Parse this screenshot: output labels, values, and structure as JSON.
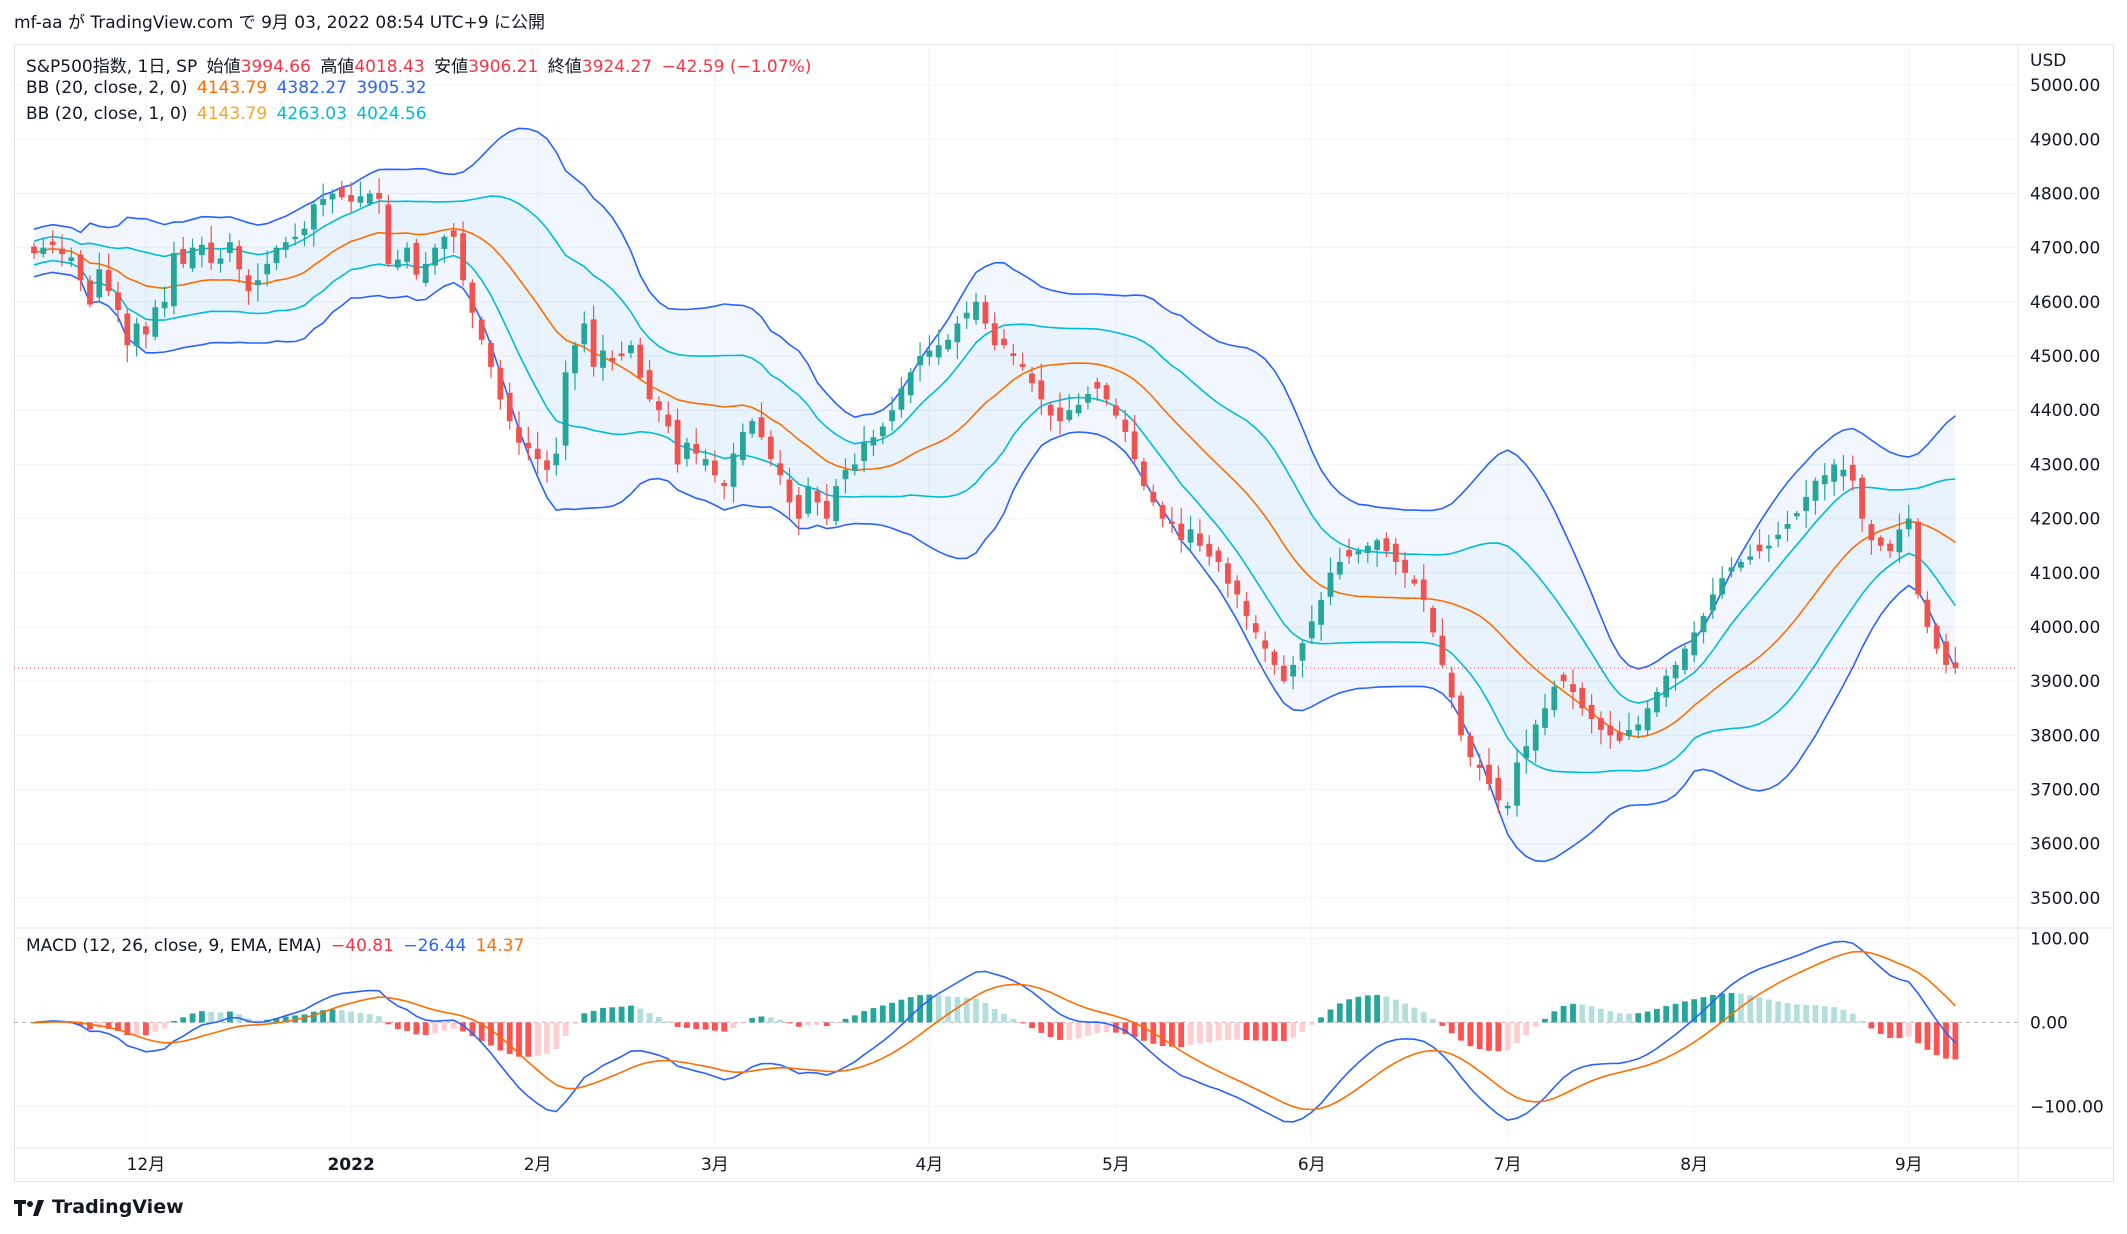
{
  "caption": "mf-aa が TradingView.com で 9月 03, 2022 08:54 UTC+9 に公開",
  "legend": {
    "symbol": "S&P500指数, 1日, SP",
    "open_label": "始値",
    "open": "3994.66",
    "high_label": "高値",
    "high": "4018.43",
    "low_label": "安値",
    "low": "3906.21",
    "close_label": "終値",
    "close": "3924.27",
    "change": "−42.59 (−1.07%)",
    "bb2_label": "BB (20, close, 2, 0)",
    "bb2_basis": "4143.79",
    "bb2_upper": "4382.27",
    "bb2_lower": "3905.32",
    "bb1_label": "BB (20, close, 1, 0)",
    "bb1_basis": "4143.79",
    "bb1_upper": "4263.03",
    "bb1_lower": "4024.56",
    "macd_label": "MACD (12, 26, close, 9, EMA, EMA)",
    "macd_hist": "−40.81",
    "macd_line": "−26.44",
    "macd_signal": "14.37"
  },
  "footer": {
    "brand": "TradingView"
  },
  "colors": {
    "up": "#26a69a",
    "down": "#ef5350",
    "bb2_band": "#2962ff",
    "bb1_band": "#00bcd4",
    "basis": "#ff6d00",
    "macd_line": "#2962ff",
    "signal_line": "#ff6d00",
    "hist_up_strong": "#26a69a",
    "hist_up_weak": "#b2dfdb",
    "hist_down_strong": "#ff5252",
    "hist_down_weak": "#ffcdd2"
  },
  "chart_data": [
    {
      "type": "candlestick",
      "currency": "USD",
      "ylim": [
        3450,
        5050
      ],
      "yticks": [
        3500,
        3600,
        3700,
        3800,
        3900,
        4000,
        4100,
        4200,
        4300,
        4400,
        4500,
        4600,
        4700,
        4800,
        4900,
        5000
      ],
      "ytick_labels": [
        "3500.00",
        "3600.00",
        "3700.00",
        "3800.00",
        "3900.00",
        "4000.00",
        "4100.00",
        "4200.00",
        "4300.00",
        "4400.00",
        "4500.00",
        "4600.00",
        "4700.00",
        "4800.00",
        "4900.00",
        "5000.00"
      ],
      "x_labels": [
        {
          "label": "12月",
          "index": 12
        },
        {
          "label": "2022",
          "index": 34
        },
        {
          "label": "2月",
          "index": 54
        },
        {
          "label": "3月",
          "index": 73
        },
        {
          "label": "4月",
          "index": 96
        },
        {
          "label": "5月",
          "index": 116
        },
        {
          "label": "6月",
          "index": 137
        },
        {
          "label": "7月",
          "index": 158
        },
        {
          "label": "8月",
          "index": 178
        },
        {
          "label": "9月",
          "index": 201
        }
      ],
      "last_close": 3924.27,
      "closes": [
        4690,
        4700,
        4705,
        4688,
        4682,
        4640,
        4595,
        4660,
        4620,
        4585,
        4520,
        4560,
        4540,
        4590,
        4600,
        4690,
        4670,
        4700,
        4705,
        4672,
        4680,
        4710,
        4660,
        4620,
        4640,
        4670,
        4700,
        4710,
        4720,
        4735,
        4780,
        4790,
        4800,
        4793,
        4785,
        4795,
        4800,
        4790,
        4670,
        4678,
        4700,
        4650,
        4670,
        4700,
        4720,
        4720,
        4640,
        4580,
        4530,
        4480,
        4420,
        4380,
        4340,
        4330,
        4310,
        4290,
        4320,
        4470,
        4520,
        4560,
        4480,
        4510,
        4490,
        4500,
        4520,
        4460,
        4420,
        4400,
        4370,
        4300,
        4340,
        4320,
        4310,
        4280,
        4260,
        4320,
        4360,
        4380,
        4350,
        4310,
        4280,
        4230,
        4200,
        4260,
        4230,
        4200,
        4260,
        4290,
        4300,
        4340,
        4350,
        4370,
        4400,
        4440,
        4470,
        4500,
        4510,
        4520,
        4530,
        4560,
        4580,
        4600,
        4560,
        4520,
        4520,
        4500,
        4480,
        4450,
        4420,
        4390,
        4380,
        4400,
        4410,
        4430,
        4440,
        4420,
        4390,
        4360,
        4310,
        4260,
        4230,
        4200,
        4190,
        4160,
        4180,
        4150,
        4130,
        4120,
        4080,
        4060,
        4020,
        3990,
        3960,
        3930,
        3900,
        3930,
        3970,
        4010,
        4050,
        4100,
        4120,
        4130,
        4140,
        4150,
        4160,
        4140,
        4120,
        4100,
        4080,
        4050,
        3990,
        3930,
        3870,
        3800,
        3760,
        3740,
        3710,
        3680,
        3670,
        3750,
        3780,
        3820,
        3850,
        3890,
        3900,
        3880,
        3850,
        3830,
        3810,
        3800,
        3790,
        3810,
        3820,
        3850,
        3880,
        3910,
        3930,
        3960,
        3990,
        4020,
        4060,
        4090,
        4110,
        4120,
        4130,
        4140,
        4150,
        4170,
        4190,
        4210,
        4240,
        4270,
        4280,
        4300,
        4290,
        4270,
        4200,
        4160,
        4150,
        4140,
        4180,
        4200,
        4060,
        4000,
        3960,
        3930,
        3924
      ],
      "bb20_2": {
        "basis": 4143.79,
        "upper": 4382.27,
        "lower": 3905.32
      },
      "bb20_1": {
        "basis": 4143.79,
        "upper": 4263.03,
        "lower": 4024.56
      }
    },
    {
      "type": "macd",
      "ylim": [
        -140,
        110
      ],
      "yticks": [
        -100,
        0,
        100
      ],
      "ytick_labels": [
        "−100.00",
        "0.00",
        "100.00"
      ],
      "last": {
        "histogram": -40.81,
        "macd": -26.44,
        "signal": 14.37
      }
    }
  ]
}
